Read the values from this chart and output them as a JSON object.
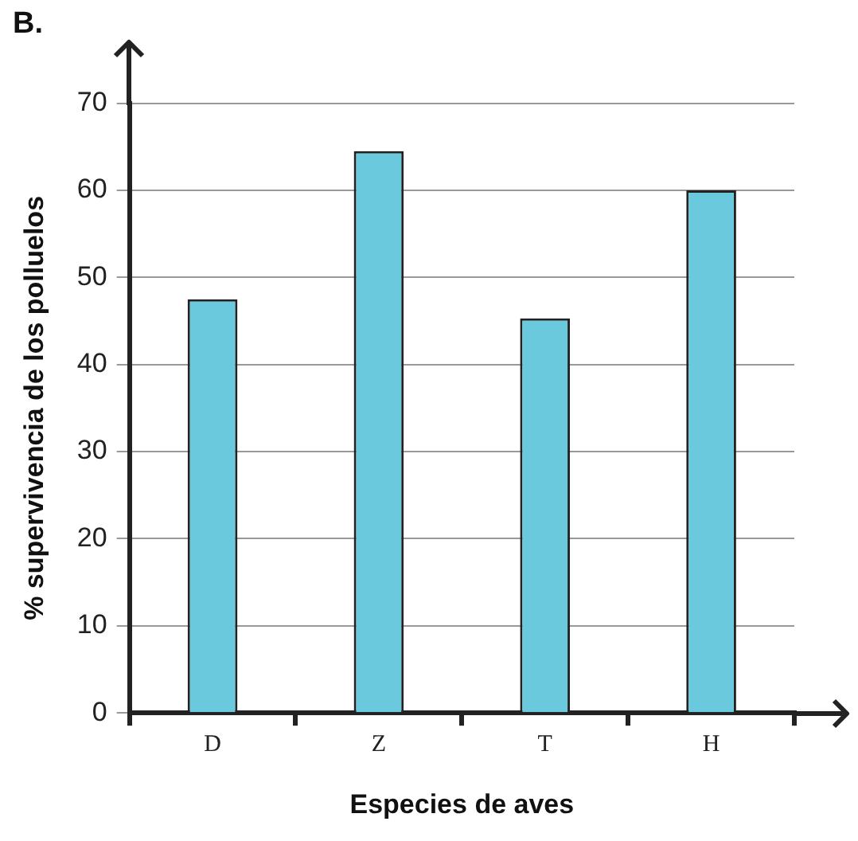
{
  "chart_data": {
    "type": "bar",
    "title": "B.",
    "xlabel": "Especies de aves",
    "ylabel": "% supervivencia de los polluelos",
    "categories": [
      "D",
      "Z",
      "T",
      "H"
    ],
    "values": [
      47.5,
      64.5,
      45.3,
      60
    ],
    "color": "#6ac9dc",
    "ylim": [
      0,
      70
    ],
    "yticks": [
      0,
      10,
      20,
      30,
      40,
      50,
      60,
      70
    ],
    "grid": "y"
  }
}
